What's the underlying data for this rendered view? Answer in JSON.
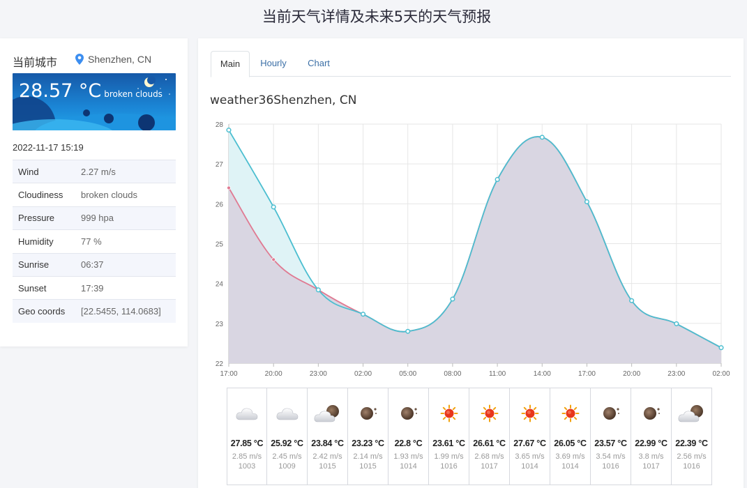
{
  "page": {
    "title": "当前天气详情及未来5天的天气预报"
  },
  "current": {
    "city_label": "当前城市",
    "location": "Shenzhen, CN",
    "temperature": "28.57 °C",
    "description": "broken clouds",
    "datetime": "2022-11-17 15:19",
    "details": [
      {
        "key": "Wind",
        "value": "2.27 m/s"
      },
      {
        "key": "Cloudiness",
        "value": "broken clouds"
      },
      {
        "key": "Pressure",
        "value": "999 hpa"
      },
      {
        "key": "Humidity",
        "value": "77 %"
      },
      {
        "key": "Sunrise",
        "value": "06:37"
      },
      {
        "key": "Sunset",
        "value": "17:39"
      },
      {
        "key": "Geo coords",
        "value": "[22.5455, 114.0683]"
      }
    ]
  },
  "tabs": [
    {
      "label": "Main",
      "active": true
    },
    {
      "label": "Hourly",
      "active": false
    },
    {
      "label": "Chart",
      "active": false
    }
  ],
  "chart_title": "weather36Shenzhen, CN",
  "chart_data": {
    "type": "area",
    "x": [
      "17:00",
      "20:00",
      "23:00",
      "02:00",
      "05:00",
      "08:00",
      "11:00",
      "14:00",
      "17:00",
      "20:00",
      "23:00",
      "02:00"
    ],
    "series": [
      {
        "values": [
          27.85,
          25.92,
          23.84,
          23.23,
          22.8,
          23.61,
          26.61,
          27.67,
          26.05,
          23.57,
          22.99,
          22.39
        ],
        "color": "#4bbed0"
      },
      {
        "values": [
          26.4,
          24.6,
          23.84,
          23.23,
          22.8,
          23.61,
          26.61,
          27.67,
          26.05,
          23.57,
          22.99,
          22.39
        ],
        "color": "#e07a92"
      }
    ],
    "y_ticks": [
      "22",
      "23",
      "24",
      "25",
      "26",
      "27",
      "28"
    ],
    "ylim": [
      22,
      28
    ],
    "grid": true,
    "legend": "none"
  },
  "forecast": [
    {
      "icon": "cloud-icon",
      "temp": "27.85 °C",
      "wind": "2.85 m/s",
      "pressure": "1003"
    },
    {
      "icon": "cloud-icon",
      "temp": "25.92 °C",
      "wind": "2.45 m/s",
      "pressure": "1009"
    },
    {
      "icon": "cloud-moon-icon",
      "temp": "23.84 °C",
      "wind": "2.42 m/s",
      "pressure": "1015"
    },
    {
      "icon": "moon-icon",
      "temp": "23.23 °C",
      "wind": "2.14 m/s",
      "pressure": "1015"
    },
    {
      "icon": "moon-icon",
      "temp": "22.8 °C",
      "wind": "1.93 m/s",
      "pressure": "1014"
    },
    {
      "icon": "sun-icon",
      "temp": "23.61 °C",
      "wind": "1.99 m/s",
      "pressure": "1016"
    },
    {
      "icon": "sun-icon",
      "temp": "26.61 °C",
      "wind": "2.68 m/s",
      "pressure": "1017"
    },
    {
      "icon": "sun-icon",
      "temp": "27.67 °C",
      "wind": "3.65 m/s",
      "pressure": "1014"
    },
    {
      "icon": "sun-icon",
      "temp": "26.05 °C",
      "wind": "3.69 m/s",
      "pressure": "1014"
    },
    {
      "icon": "moon-icon",
      "temp": "23.57 °C",
      "wind": "3.54 m/s",
      "pressure": "1016"
    },
    {
      "icon": "moon-icon",
      "temp": "22.99 °C",
      "wind": "3.8 m/s",
      "pressure": "1017"
    },
    {
      "icon": "cloud-moon-icon",
      "temp": "22.39 °C",
      "wind": "2.56 m/s",
      "pressure": "1016"
    }
  ],
  "colors": {
    "accent": "#3b6fa6",
    "area_fill": "#d9d6e2",
    "upper_line": "#4bbed0",
    "lower_line": "#e07a92"
  }
}
